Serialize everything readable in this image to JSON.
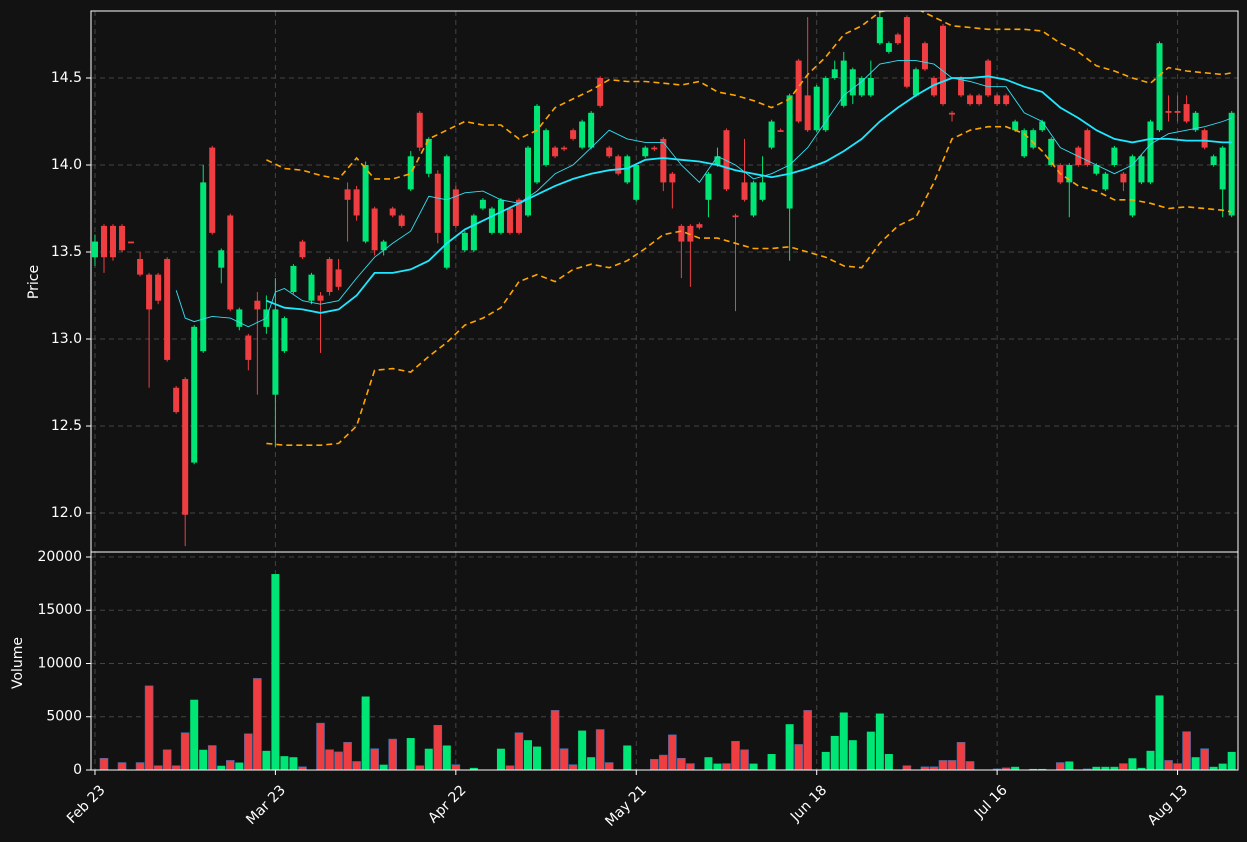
{
  "chart_data": [
    {
      "type": "candlestick",
      "ylabel": "Price",
      "up_color": "#00e676",
      "down_color": "#ef3e42",
      "grid": true,
      "ylim": [
        11.776,
        14.885
      ],
      "yticks": [
        {
          "value": 12,
          "label": "12.0"
        },
        {
          "value": 12.5,
          "label": "12.5"
        },
        {
          "value": 13,
          "label": "13.0"
        },
        {
          "value": 13.5,
          "label": "13.5"
        },
        {
          "value": 14,
          "label": "14.0"
        },
        {
          "value": 14.5,
          "label": "14.5"
        }
      ],
      "open": [
        13.47,
        13.65,
        13.65,
        13.65,
        13.56,
        13.46,
        13.37,
        13.37,
        13.46,
        12.72,
        12.77,
        12.29,
        12.93,
        14.1,
        13.41,
        13.71,
        13.07,
        13.02,
        13.22,
        13.07,
        12.68,
        12.93,
        13.27,
        13.56,
        13.22,
        13.25,
        13.46,
        13.4,
        13.86,
        13.86,
        13.56,
        13.75,
        13.51,
        13.75,
        13.71,
        13.86,
        14.3,
        13.95,
        13.95,
        13.41,
        13.86,
        13.51,
        13.51,
        13.75,
        13.61,
        13.61,
        13.75,
        13.8,
        13.71,
        13.9,
        14.0,
        14.1,
        14.1,
        14.2,
        14.1,
        14.1,
        14.5,
        14.1,
        14.05,
        13.9,
        13.8,
        14.05,
        14.1,
        14.15,
        13.95,
        13.65,
        13.65,
        13.66,
        13.8,
        14.0,
        14.2,
        13.71,
        13.9,
        13.71,
        13.8,
        14.1,
        14.2,
        13.75,
        14.6,
        14.4,
        14.2,
        14.2,
        14.5,
        14.34,
        14.4,
        14.4,
        14.4,
        14.7,
        14.65,
        14.75,
        14.85,
        14.4,
        14.7,
        14.5,
        14.8,
        14.3,
        14.5,
        14.4,
        14.4,
        14.6,
        14.4,
        14.4,
        14.2,
        14.05,
        14.1,
        14.2,
        14.0,
        14.0,
        13.9,
        14.1,
        14.2,
        13.95,
        13.86,
        14.0,
        13.95,
        13.71,
        13.9,
        13.9,
        14.2,
        14.31,
        14.31,
        14.35,
        14.2,
        14.2,
        14.0,
        13.86,
        13.71
      ],
      "high": [
        13.6,
        13.66,
        13.66,
        13.66,
        13.56,
        13.5,
        13.38,
        13.38,
        13.47,
        12.73,
        12.78,
        13.08,
        14.0,
        14.11,
        13.52,
        13.72,
        13.18,
        13.03,
        13.27,
        13.25,
        13.35,
        13.13,
        13.43,
        13.57,
        13.38,
        13.27,
        13.47,
        13.46,
        13.9,
        13.88,
        14.02,
        13.76,
        13.57,
        13.76,
        13.72,
        14.08,
        14.31,
        14.16,
        13.97,
        14.06,
        13.88,
        13.62,
        13.72,
        13.81,
        13.76,
        13.81,
        13.76,
        13.81,
        14.11,
        14.35,
        14.21,
        14.11,
        14.11,
        14.21,
        14.26,
        14.31,
        14.51,
        14.11,
        14.06,
        14.06,
        14.01,
        14.11,
        14.11,
        14.16,
        13.96,
        13.66,
        13.66,
        13.67,
        13.96,
        14.1,
        14.21,
        13.72,
        14.15,
        13.91,
        14.05,
        14.26,
        14.21,
        14.41,
        14.61,
        14.85,
        14.46,
        14.51,
        14.6,
        14.65,
        14.56,
        14.51,
        14.6,
        14.88,
        14.71,
        14.76,
        14.86,
        14.56,
        14.71,
        14.51,
        14.81,
        14.31,
        14.51,
        14.41,
        14.41,
        14.61,
        14.41,
        14.41,
        14.26,
        14.21,
        14.21,
        14.26,
        14.16,
        14.01,
        14.01,
        14.11,
        14.21,
        14.01,
        13.96,
        14.11,
        13.96,
        14.06,
        14.06,
        14.26,
        14.71,
        14.4,
        14.4,
        14.4,
        14.31,
        14.21,
        14.06,
        14.11,
        14.31
      ],
      "low": [
        13.42,
        13.38,
        13.45,
        13.5,
        13.55,
        13.36,
        12.72,
        13.2,
        12.87,
        12.57,
        11.81,
        12.28,
        12.92,
        13.6,
        13.32,
        13.16,
        13.05,
        12.82,
        12.68,
        13.03,
        12.38,
        12.92,
        13.26,
        13.46,
        13.2,
        12.92,
        13.25,
        13.28,
        13.56,
        13.68,
        13.55,
        13.48,
        13.48,
        13.7,
        13.64,
        13.85,
        14.08,
        13.93,
        13.55,
        13.4,
        13.64,
        13.5,
        13.5,
        13.74,
        13.6,
        13.6,
        13.6,
        13.6,
        13.7,
        13.89,
        13.99,
        14.04,
        14.08,
        14.14,
        14.09,
        14.09,
        14.33,
        14.04,
        13.94,
        13.89,
        13.79,
        14.04,
        14.08,
        13.85,
        13.75,
        13.35,
        13.3,
        13.63,
        13.7,
        13.99,
        13.85,
        13.16,
        13.79,
        13.7,
        13.79,
        14.09,
        14.19,
        13.45,
        14.24,
        14.19,
        14.19,
        14.19,
        14.49,
        14.33,
        14.35,
        14.39,
        14.39,
        14.69,
        14.64,
        14.69,
        14.44,
        14.39,
        14.54,
        14.39,
        14.34,
        14.25,
        14.39,
        14.34,
        14.34,
        14.39,
        14.34,
        14.34,
        14.19,
        14.04,
        14.09,
        14.19,
        13.99,
        13.89,
        13.7,
        13.99,
        13.99,
        13.94,
        13.85,
        13.99,
        13.85,
        13.7,
        13.89,
        13.89,
        14.19,
        14.25,
        14.25,
        14.24,
        14.19,
        14.09,
        13.99,
        13.7,
        13.7
      ],
      "close": [
        13.56,
        13.47,
        13.47,
        13.51,
        13.55,
        13.37,
        13.17,
        13.22,
        12.88,
        12.58,
        11.99,
        13.07,
        13.9,
        13.61,
        13.51,
        13.17,
        13.17,
        12.88,
        13.17,
        13.17,
        13.17,
        13.12,
        13.42,
        13.47,
        13.37,
        13.22,
        13.27,
        13.3,
        13.8,
        13.71,
        14.0,
        13.51,
        13.56,
        13.71,
        13.65,
        14.05,
        14.1,
        14.15,
        13.61,
        14.05,
        13.65,
        13.61,
        13.71,
        13.8,
        13.75,
        13.8,
        13.61,
        13.61,
        14.1,
        14.34,
        14.2,
        14.05,
        14.09,
        14.15,
        14.25,
        14.3,
        14.34,
        14.05,
        13.95,
        14.05,
        14.0,
        14.1,
        14.09,
        13.9,
        13.9,
        13.56,
        13.56,
        13.64,
        13.95,
        14.05,
        13.86,
        13.7,
        13.8,
        13.9,
        13.9,
        14.25,
        14.19,
        14.4,
        14.25,
        14.2,
        14.45,
        14.5,
        14.55,
        14.6,
        14.55,
        14.5,
        14.5,
        14.85,
        14.7,
        14.7,
        14.45,
        14.55,
        14.55,
        14.4,
        14.35,
        14.29,
        14.4,
        14.35,
        14.35,
        14.4,
        14.35,
        14.35,
        14.25,
        14.2,
        14.2,
        14.25,
        14.15,
        13.9,
        14.0,
        14.0,
        14.0,
        14.0,
        13.95,
        14.1,
        13.9,
        14.05,
        14.05,
        14.25,
        14.7,
        14.3,
        14.3,
        14.25,
        14.3,
        14.1,
        14.05,
        14.1,
        14.3
      ],
      "overlays": [
        {
          "color": "#33e0f0",
          "width": 0.9,
          "dash": false,
          "x": [
            9,
            10,
            11,
            13,
            15,
            17,
            19,
            20,
            21,
            23,
            25,
            27,
            29,
            31,
            33,
            35,
            37,
            39,
            41,
            43,
            45,
            47,
            49,
            51,
            53,
            55,
            57,
            59,
            61,
            63,
            65,
            67,
            69,
            71,
            73,
            75,
            77,
            79,
            81,
            83,
            85,
            87,
            89,
            91,
            93,
            95,
            97,
            99,
            101,
            103,
            105,
            107,
            109,
            111,
            113,
            115,
            117,
            119,
            121,
            123,
            125,
            126
          ],
          "values": [
            13.28,
            13.12,
            13.1,
            13.13,
            13.12,
            13.07,
            13.12,
            13.27,
            13.29,
            13.22,
            13.2,
            13.22,
            13.35,
            13.47,
            13.55,
            13.62,
            13.82,
            13.8,
            13.84,
            13.85,
            13.8,
            13.78,
            13.85,
            13.95,
            14.0,
            14.1,
            14.2,
            14.15,
            14.13,
            14.13,
            14.0,
            13.9,
            14.05,
            14.0,
            13.92,
            13.95,
            14.0,
            14.1,
            14.25,
            14.4,
            14.48,
            14.58,
            14.6,
            14.6,
            14.58,
            14.5,
            14.48,
            14.45,
            14.45,
            14.3,
            14.25,
            14.1,
            14.05,
            14.0,
            13.95,
            14.0,
            14.12,
            14.18,
            14.2,
            14.22,
            14.25,
            14.27
          ]
        },
        {
          "color": "#1ee8ff",
          "width": 1.8,
          "dash": false,
          "x": [
            19,
            21,
            23,
            25,
            27,
            29,
            31,
            33,
            35,
            37,
            39,
            41,
            43,
            45,
            47,
            49,
            51,
            53,
            55,
            57,
            59,
            61,
            63,
            65,
            67,
            69,
            71,
            73,
            75,
            77,
            79,
            81,
            83,
            85,
            87,
            89,
            91,
            93,
            95,
            97,
            99,
            101,
            103,
            105,
            107,
            109,
            111,
            113,
            115,
            117,
            119,
            121,
            123,
            125,
            126
          ],
          "values": [
            13.22,
            13.18,
            13.17,
            13.15,
            13.17,
            13.25,
            13.38,
            13.38,
            13.4,
            13.45,
            13.55,
            13.63,
            13.68,
            13.73,
            13.78,
            13.83,
            13.88,
            13.92,
            13.95,
            13.97,
            13.98,
            14.03,
            14.04,
            14.03,
            14.02,
            14.0,
            13.97,
            13.95,
            13.93,
            13.95,
            13.98,
            14.02,
            14.08,
            14.15,
            14.25,
            14.33,
            14.4,
            14.46,
            14.5,
            14.5,
            14.51,
            14.49,
            14.45,
            14.42,
            14.33,
            14.27,
            14.2,
            14.15,
            14.13,
            14.15,
            14.15,
            14.14,
            14.14,
            14.13,
            14.13
          ]
        },
        {
          "color": "#ffa500",
          "width": 1.6,
          "dash": true,
          "x": [
            19,
            21,
            23,
            25,
            27,
            29,
            31,
            33,
            35,
            37,
            39,
            41,
            43,
            45,
            47,
            49,
            51,
            53,
            55,
            57,
            59,
            61,
            63,
            65,
            67,
            69,
            71,
            73,
            75,
            77,
            79,
            81,
            83,
            85,
            87,
            89,
            91,
            93,
            95,
            97,
            99,
            101,
            103,
            105,
            107,
            109,
            111,
            113,
            115,
            117,
            119,
            121,
            123,
            125,
            126
          ],
          "values": [
            14.03,
            13.98,
            13.97,
            13.94,
            13.92,
            14.04,
            13.92,
            13.92,
            13.95,
            14.15,
            14.2,
            14.25,
            14.23,
            14.23,
            14.15,
            14.2,
            14.33,
            14.38,
            14.43,
            14.49,
            14.48,
            14.48,
            14.47,
            14.46,
            14.48,
            14.42,
            14.4,
            14.37,
            14.33,
            14.38,
            14.52,
            14.62,
            14.75,
            14.8,
            14.88,
            14.9,
            14.9,
            14.85,
            14.8,
            14.79,
            14.78,
            14.78,
            14.78,
            14.77,
            14.7,
            14.65,
            14.57,
            14.54,
            14.5,
            14.47,
            14.56,
            14.54,
            14.53,
            14.52,
            14.53
          ]
        },
        {
          "color": "#ffa500",
          "width": 1.6,
          "dash": true,
          "x": [
            19,
            21,
            23,
            25,
            27,
            29,
            31,
            33,
            35,
            37,
            39,
            41,
            43,
            45,
            47,
            49,
            51,
            53,
            55,
            57,
            59,
            61,
            63,
            65,
            67,
            69,
            71,
            73,
            75,
            77,
            79,
            81,
            83,
            85,
            87,
            89,
            91,
            93,
            95,
            97,
            99,
            101,
            103,
            105,
            107,
            109,
            111,
            113,
            115,
            117,
            119,
            121,
            123,
            125,
            126
          ],
          "values": [
            12.4,
            12.39,
            12.39,
            12.39,
            12.4,
            12.5,
            12.82,
            12.83,
            12.81,
            12.9,
            12.98,
            13.08,
            13.12,
            13.18,
            13.33,
            13.37,
            13.33,
            13.4,
            13.43,
            13.41,
            13.45,
            13.52,
            13.6,
            13.62,
            13.58,
            13.58,
            13.55,
            13.52,
            13.52,
            13.53,
            13.5,
            13.47,
            13.42,
            13.41,
            13.55,
            13.65,
            13.7,
            13.9,
            14.15,
            14.2,
            14.22,
            14.22,
            14.18,
            14.08,
            13.95,
            13.88,
            13.85,
            13.8,
            13.8,
            13.78,
            13.75,
            13.76,
            13.75,
            13.74,
            13.73
          ]
        }
      ]
    },
    {
      "type": "bar",
      "ylabel": "Volume",
      "grid": true,
      "ylim": [
        0,
        20469
      ],
      "yticks": [
        0,
        5000,
        10000,
        15000,
        20000
      ],
      "xlim": [
        -0.44,
        126.7
      ],
      "xticks": [
        {
          "value": 0,
          "label": "Feb 23"
        },
        {
          "value": 20,
          "label": "Mar 23"
        },
        {
          "value": 40,
          "label": "Apr 22"
        },
        {
          "value": 60,
          "label": "May 21"
        },
        {
          "value": 80,
          "label": "Jun 18"
        },
        {
          "value": 100,
          "label": "Jul 16"
        },
        {
          "value": 120,
          "label": "Aug 13"
        }
      ],
      "values": [
        0,
        1100,
        0,
        700,
        0,
        700,
        7900,
        400,
        1900,
        400,
        3500,
        6600,
        1900,
        2300,
        400,
        900,
        700,
        3400,
        8600,
        1800,
        18400,
        1300,
        1200,
        300,
        0,
        4400,
        1900,
        1700,
        2600,
        800,
        6900,
        2000,
        500,
        2900,
        0,
        3000,
        400,
        2000,
        4200,
        2300,
        500,
        0,
        200,
        0,
        0,
        2000,
        400,
        3500,
        2800,
        2200,
        0,
        5600,
        2000,
        500,
        3700,
        1200,
        3800,
        700,
        0,
        2300,
        0,
        0,
        1000,
        1400,
        3300,
        1100,
        600,
        0,
        1200,
        600,
        600,
        2700,
        1900,
        600,
        0,
        1500,
        0,
        4300,
        2400,
        5600,
        0,
        1700,
        3200,
        5400,
        2800,
        0,
        3600,
        5300,
        1500,
        0,
        400,
        0,
        300,
        300,
        900,
        900,
        2600,
        800,
        0,
        0,
        100,
        200,
        300,
        0,
        100,
        100,
        0,
        700,
        800,
        0,
        100,
        300,
        300,
        300,
        600,
        1100,
        200,
        1800,
        7000,
        900,
        600,
        3600,
        1200,
        2000,
        300,
        600,
        1700
      ]
    }
  ]
}
